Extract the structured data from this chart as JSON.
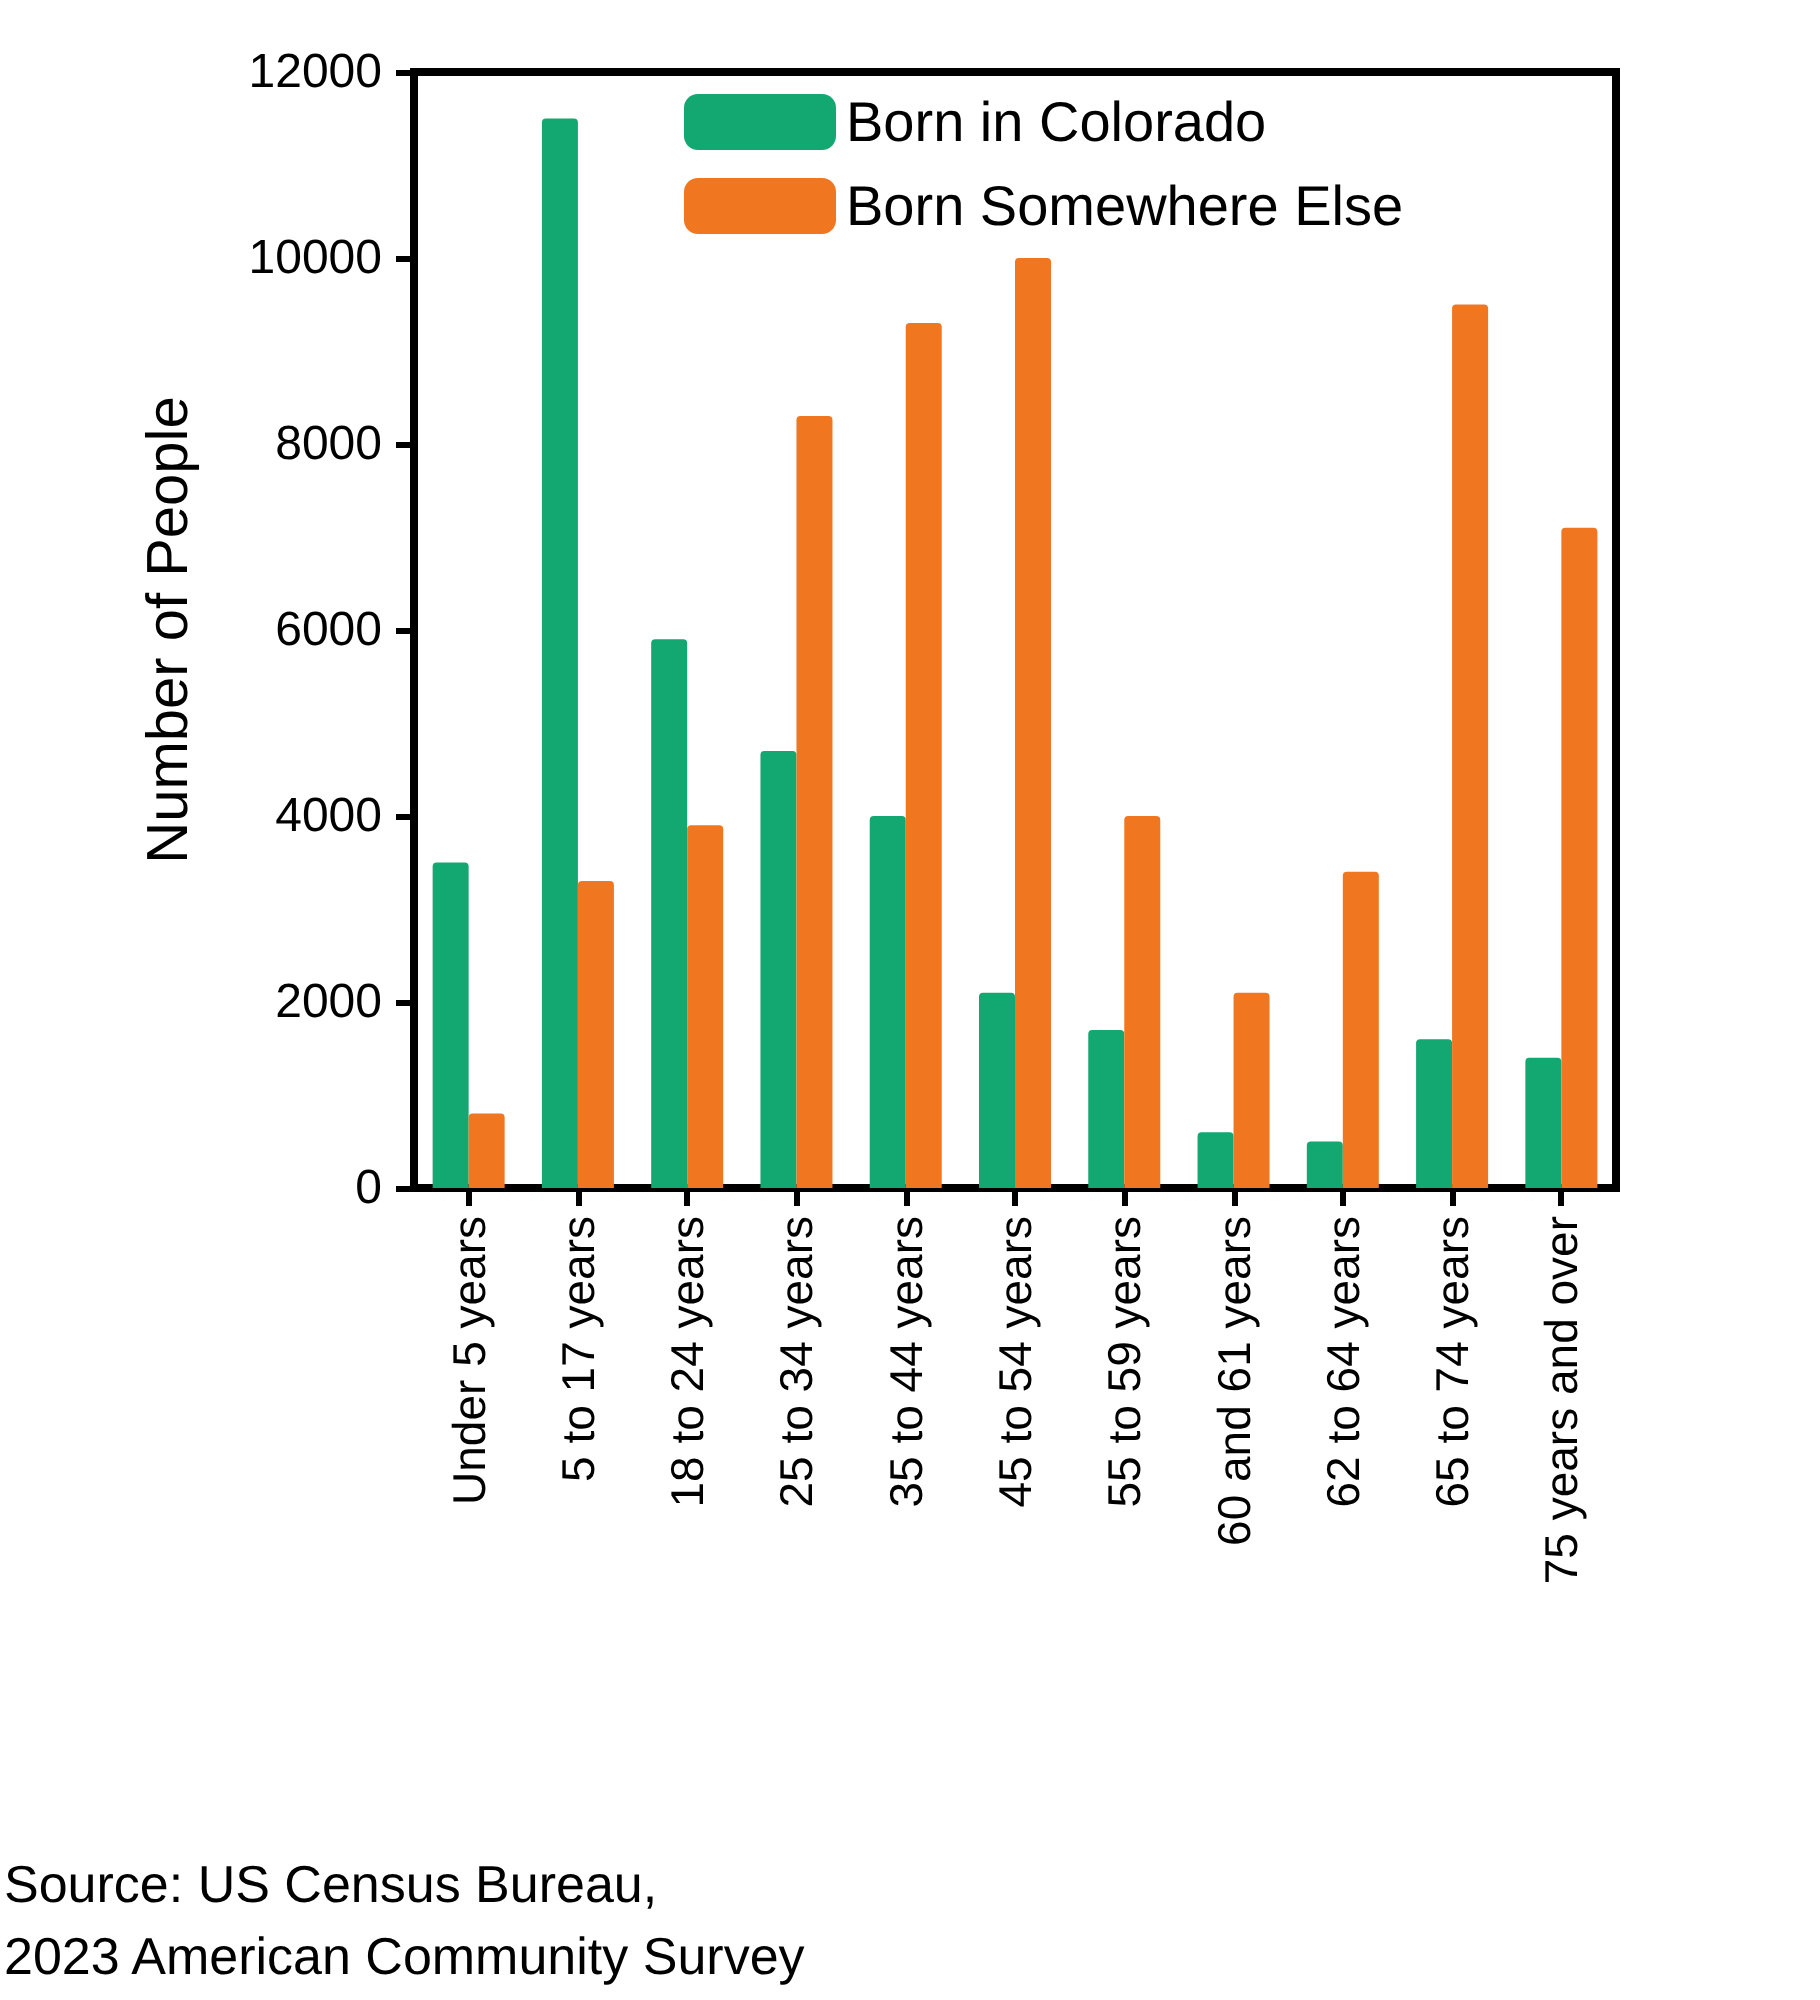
{
  "chart_data": {
    "type": "bar",
    "ylabel": "Number of People",
    "categories": [
      "Under 5 years",
      "5 to 17 years",
      "18 to 24 years",
      "25 to 34 years",
      "35 to 44 years",
      "45 to 54 years",
      "55 to 59 years",
      "60 and 61 years",
      "62 to 64 years",
      "65 to 74 years",
      "75 years and over"
    ],
    "series": [
      {
        "name": "Born in Colorado",
        "color": "#13a772",
        "values": [
          3500,
          11500,
          5900,
          4700,
          4000,
          2100,
          1700,
          600,
          500,
          1600,
          1400
        ]
      },
      {
        "name": "Born Somewhere Else",
        "color": "#f07620",
        "values": [
          800,
          3300,
          3900,
          8300,
          9300,
          10000,
          4000,
          2100,
          3400,
          9500,
          7100
        ]
      }
    ],
    "ylim": [
      0,
      12000
    ],
    "yticks": [
      0,
      2000,
      4000,
      6000,
      8000,
      10000,
      12000
    ],
    "grid": false,
    "legend": "top",
    "annotations": [
      "Source: US Census Bureau,\n2023 American Community Survey"
    ]
  }
}
